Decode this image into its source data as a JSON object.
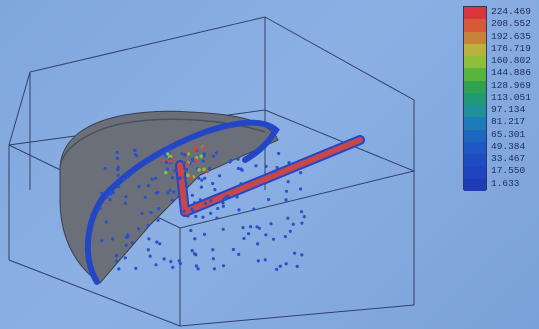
{
  "legend": {
    "values": [
      "224.469",
      "208.552",
      "192.635",
      "176.719",
      "160.802",
      "144.886",
      "128.969",
      "113.051",
      "97.134",
      "81.217",
      "65.301",
      "49.384",
      "33.467",
      "17.550",
      "1.633"
    ],
    "colors": [
      "#d9353b",
      "#d65a3a",
      "#c9823a",
      "#b9b23c",
      "#8fbf3a",
      "#58b53c",
      "#2ea24e",
      "#1f9a74",
      "#1f8f9a",
      "#1f7ab8",
      "#1f66bf",
      "#1f58c4",
      "#1f4cc3",
      "#1f44bd",
      "#1f3cb5"
    ]
  },
  "scene": {
    "particle_color": "#2b51c9",
    "particle_color_hot": "#d4463a",
    "particle_color_warm": "#83c23a"
  }
}
